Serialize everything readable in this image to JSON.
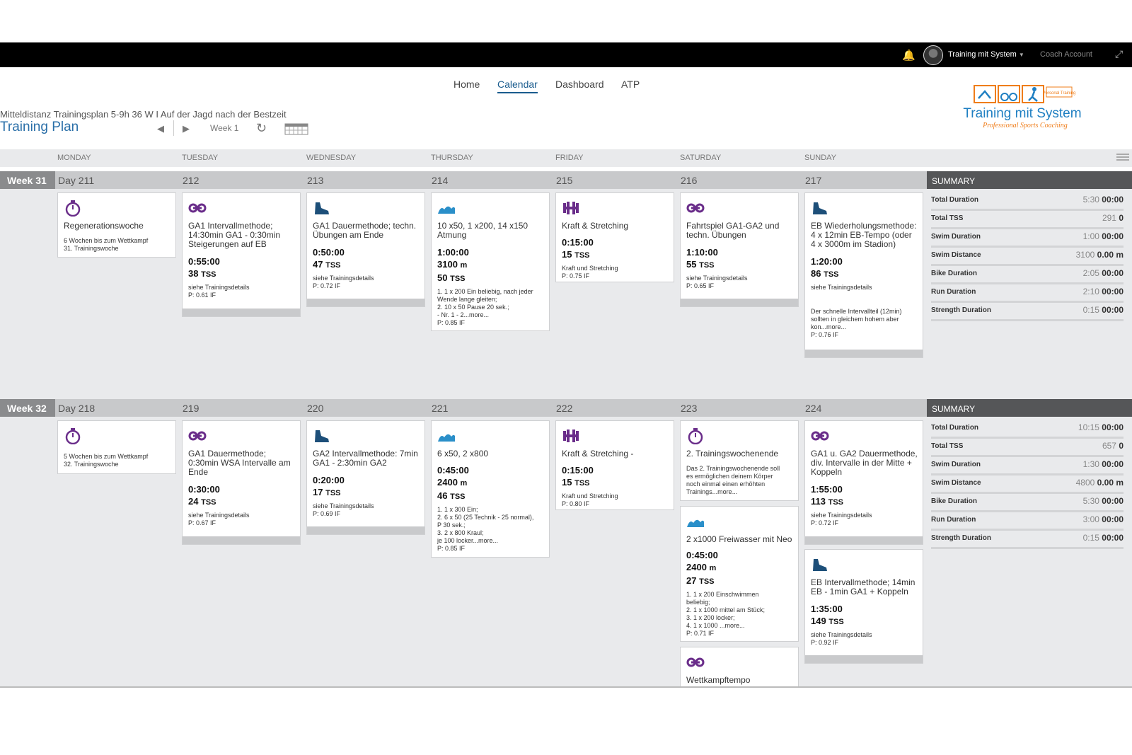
{
  "topbar": {
    "user_name": "Training mit System",
    "user_caret": "▼",
    "coach_account": "Coach Account",
    "bell_icon": "bell-icon",
    "expand_icon": "expand-icon"
  },
  "nav": {
    "home": "Home",
    "calendar": "Calendar",
    "dashboard": "Dashboard",
    "atp": "ATP"
  },
  "plan": {
    "subtitle": "Mitteldistanz Trainingsplan 5-9h 36 W I Auf der Jagd nach der Bestzeit",
    "title": "Training Plan",
    "week_label": "Week 1"
  },
  "logo": {
    "name": "Training mit System",
    "tagline": "Professional Sports Coaching",
    "badge": "Personal Training"
  },
  "days": [
    "MONDAY",
    "TUESDAY",
    "WEDNESDAY",
    "THURSDAY",
    "FRIDAY",
    "SATURDAY",
    "SUNDAY"
  ],
  "colors": {
    "swim": "#2a8fc9",
    "bike": "#6a2d8a",
    "run": "#1d4f79",
    "strength": "#6a2d8a",
    "other": "#6a2d8a",
    "accent": "#2a6fa8"
  },
  "weeks": [
    {
      "label": "Week 31",
      "day_labels": [
        "Day 211",
        "212",
        "213",
        "214",
        "215",
        "216",
        "217"
      ],
      "summary": {
        "title": "SUMMARY",
        "rows": [
          {
            "label": "Total Duration",
            "planned": "5:30",
            "actual": "00:00"
          },
          {
            "label": "Total TSS",
            "planned": "291",
            "actual": "0"
          },
          {
            "label": "Swim Duration",
            "planned": "1:00",
            "actual": "00:00"
          },
          {
            "label": "Swim Distance",
            "planned": "3100",
            "actual": "0.00 m"
          },
          {
            "label": "Bike Duration",
            "planned": "2:05",
            "actual": "00:00"
          },
          {
            "label": "Run Duration",
            "planned": "2:10",
            "actual": "00:00"
          },
          {
            "label": "Strength Duration",
            "planned": "0:15",
            "actual": "00:00"
          }
        ]
      },
      "cards": [
        {
          "title": "Regenerationswoche",
          "lines": [
            "6 Wochen bis zum Wettkampf",
            "31. Trainingswoche"
          ]
        },
        {
          "title": "GA1 Intervallmethode; 14:30min GA1 - 0:30min Steigerungen auf EB",
          "duration": "0:55:00",
          "tss": "38",
          "lines": [
            "siehe Trainingsdetails",
            "P: 0.61 IF"
          ]
        },
        {
          "title": "GA1 Dauermethode; techn. Übungen am Ende",
          "duration": "0:50:00",
          "tss": "47",
          "lines": [
            "siehe Trainingsdetails",
            "P: 0.72 IF"
          ]
        },
        {
          "title": "10 x50, 1 x200, 14 x150 Atmung",
          "duration": "1:00:00",
          "distance": "3100",
          "tss": "50",
          "lines": [
            "1. 1 x 200 Ein beliebig, nach jeder",
            "Wende lange gleiten;",
            "2. 10 x 50 Pause 20 sek.;",
            "- Nr. 1 - 2...more...",
            "P: 0.85 IF"
          ]
        },
        {
          "title": "Kraft & Stretching",
          "duration": "0:15:00",
          "tss": "15",
          "lines": [
            "Kraft und Stretching",
            "P: 0.75 IF"
          ]
        },
        {
          "title": "Fahrtspiel GA1-GA2 und techn. Übungen",
          "duration": "1:10:00",
          "tss": "55",
          "lines": [
            "siehe Trainingsdetails",
            "P: 0.65 IF"
          ]
        },
        {
          "title": "EB Wiederholungsmethode: 4 x 12min EB-Tempo (oder 4 x 3000m im Stadion)",
          "duration": "1:20:00",
          "tss": "86",
          "lines": [
            "siehe Trainingsdetails"
          ],
          "lines2": [
            "Der schnelle Intervallteil (12min)",
            "sollten in gleichem hohem aber",
            "kon...more...",
            "P: 0.76 IF"
          ]
        }
      ]
    },
    {
      "label": "Week 32",
      "day_labels": [
        "Day 218",
        "219",
        "220",
        "221",
        "222",
        "223",
        "224"
      ],
      "summary": {
        "title": "SUMMARY",
        "rows": [
          {
            "label": "Total Duration",
            "planned": "10:15",
            "actual": "00:00"
          },
          {
            "label": "Total TSS",
            "planned": "657",
            "actual": "0"
          },
          {
            "label": "Swim Duration",
            "planned": "1:30",
            "actual": "00:00"
          },
          {
            "label": "Swim Distance",
            "planned": "4800",
            "actual": "0.00 m"
          },
          {
            "label": "Bike Duration",
            "planned": "5:30",
            "actual": "00:00"
          },
          {
            "label": "Run Duration",
            "planned": "3:00",
            "actual": "00:00"
          },
          {
            "label": "Strength Duration",
            "planned": "0:15",
            "actual": "00:00"
          }
        ]
      },
      "cards": [
        {
          "lines": [
            "5 Wochen bis zum Wettkampf",
            "32. Trainingswoche"
          ]
        },
        {
          "title": "GA1 Dauermethode; 0:30min WSA Intervalle am Ende",
          "duration": "0:30:00",
          "tss": "24",
          "lines": [
            "siehe Trainingsdetails",
            "P: 0.67 IF"
          ]
        },
        {
          "title": "GA2 Intervallmethode: 7min GA1 - 2:30min GA2",
          "duration": "0:20:00",
          "tss": "17",
          "lines": [
            "siehe Trainingsdetails",
            "P: 0.69 IF"
          ]
        },
        {
          "title": "6 x50, 2 x800",
          "duration": "0:45:00",
          "distance": "2400",
          "tss": "46",
          "lines": [
            "1. 1 x 300 Ein;",
            "2. 6 x 50 (25 Technik - 25 normal),",
            "P 30 sek.;",
            "3. 2 x 800 Kraul;",
            "je 100 locker...more...",
            "P: 0.85 IF"
          ]
        },
        {
          "title": "Kraft & Stretching -",
          "duration": "0:15:00",
          "tss": "15",
          "lines": [
            "Kraft und Stretching",
            "P: 0.80 IF"
          ]
        },
        {
          "title": "2. Trainingswochenende",
          "lines": [
            "Das 2. Trainingswochenende soll",
            "es ermöglichen deinem Körper",
            "noch einmal einen erhöhten",
            "Trainings...more..."
          ]
        },
        {
          "title": "GA1 u. GA2 Dauermethode, div. Intervalle in der Mitte + Koppeln",
          "duration": "1:55:00",
          "tss": "113",
          "lines": [
            "siehe Trainingsdetails",
            "P: 0.72 IF"
          ]
        },
        {
          "title": "2 x1000 Freiwasser mit Neo",
          "duration": "0:45:00",
          "distance": "2400",
          "tss": "27",
          "lines": [
            "1. 1 x 200 Einschwimmen",
            "beliebig;",
            "2. 1 x 1000 mittel am Stück;",
            "3. 1 x 200 locker;",
            "4. 1 x 1000 ...more...",
            "P: 0.71 IF"
          ]
        },
        {
          "title": "EB Intervallmethode; 14min EB - 1min GA1 + Koppeln",
          "duration": "1:35:00",
          "tss": "149",
          "lines": [
            "siehe Trainingsdetails",
            "P: 0.92 IF"
          ]
        },
        {
          "title": "Wettkampftempo"
        }
      ]
    }
  ],
  "units": {
    "tss": "TSS",
    "meters": "m"
  },
  "icons": {
    "other": "stopwatch-icon",
    "bike": "bike-icon",
    "run": "run-shoe-icon",
    "swim": "swim-icon",
    "strength": "dumbbell-icon"
  }
}
